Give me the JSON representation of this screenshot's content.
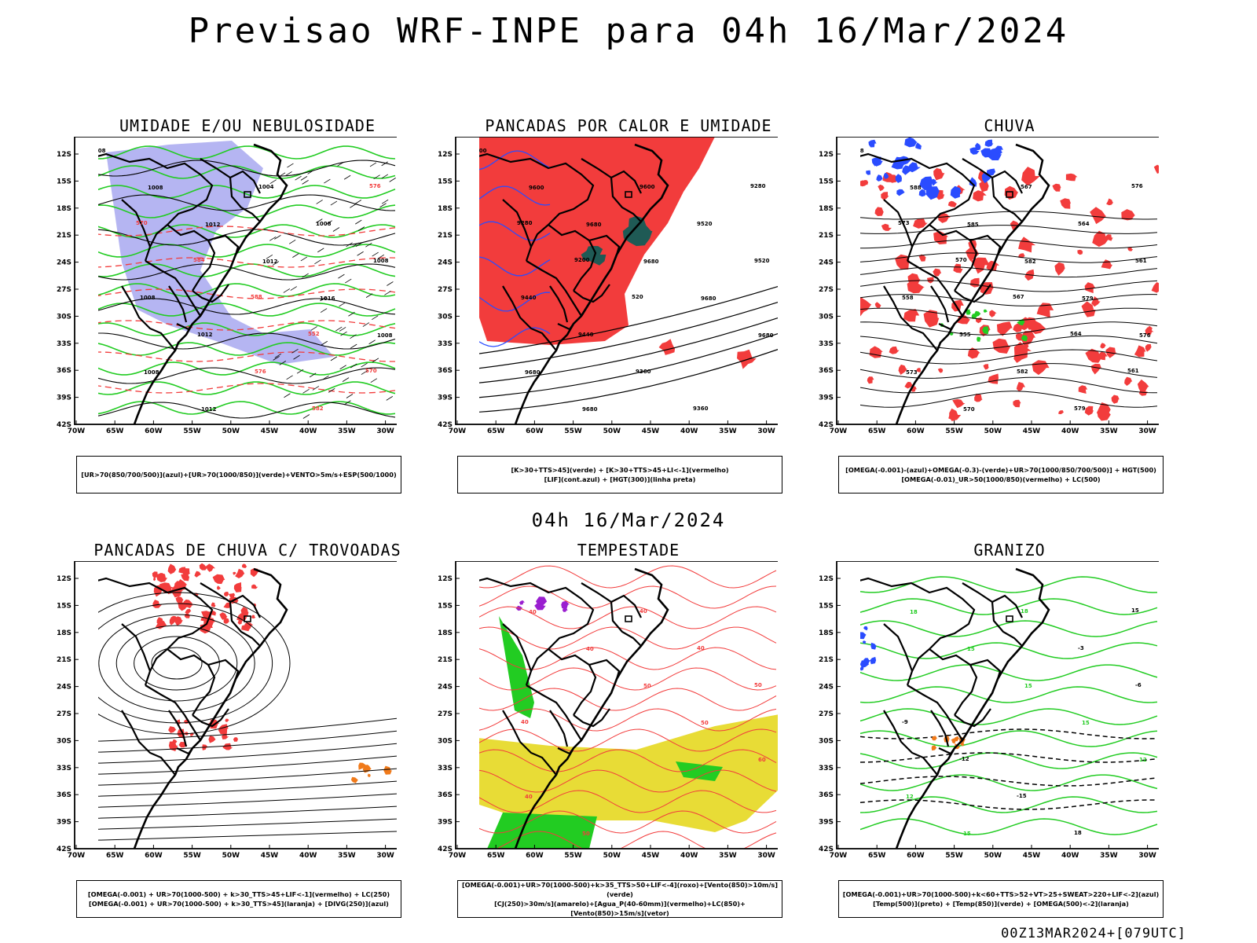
{
  "header": {
    "title": "Previsao WRF-INPE  para 04h 16/Mar/2024"
  },
  "middle": {
    "title": "04h 16/Mar/2024"
  },
  "footer": {
    "stamp": "00Z13MAR2024+[079UTC]"
  },
  "axes": {
    "lat_labels": [
      "12S",
      "15S",
      "18S",
      "21S",
      "24S",
      "27S",
      "30S",
      "33S",
      "36S",
      "39S",
      "42S"
    ],
    "lon_labels": [
      "70W",
      "65W",
      "60W",
      "55W",
      "50W",
      "45W",
      "40W",
      "35W",
      "30W"
    ]
  },
  "colors": {
    "red": "#f23c3c",
    "green": "#22cc22",
    "blue": "#2a4cff",
    "lavender": "#a8a8f0",
    "teal": "#1f5a55",
    "yellow": "#e8dc36",
    "purple": "#9a1fd0",
    "orange": "#f07a1a",
    "black": "#000000"
  },
  "panels": [
    {
      "title": "UMIDADE E/OU NEBULOSIDADE",
      "legend": [
        "[UR>70(850/700/500)](azul)+[UR>70(1000/850)](verde)+VENTO>5m/s+ESP(500/1000)"
      ],
      "contour_labels": [
        "1008",
        "1008",
        "1012",
        "1012",
        "1016",
        "1008",
        "1008",
        "1012",
        "1004",
        "1008",
        "1008",
        "1008",
        "1012",
        "576",
        "582",
        "576",
        "570",
        "584",
        "588",
        "552",
        "570"
      ]
    },
    {
      "title": "PANCADAS POR CALOR E UMIDADE",
      "legend": [
        "[K>30+TTS>45](verde) + [K>30+TTS>45+LI<-1](vermelho)",
        "[LIF](cont.azul) + [HGT(300)](linha preta)"
      ],
      "contour_labels": [
        "9600",
        "9600",
        "9680",
        "9680",
        "9680",
        "9680",
        "9680",
        "9680",
        "9600",
        "9520",
        "9520",
        "9440",
        "9440",
        "9360",
        "9360",
        "9280",
        "9280",
        "9200",
        "520"
      ]
    },
    {
      "title": "CHUVA",
      "legend": [
        "[OMEGA(-0.001)-(azul)+OMEGA(-0.3)-(verde)+UR>70(1000/850/700/500)] + HGT(500)",
        "[OMEGA(-0.01)_UR>50(1000/850)(vermelho) + LC(500)"
      ],
      "contour_labels": [
        "588",
        "588",
        "585",
        "582",
        "579",
        "576",
        "573",
        "570",
        "567",
        "564",
        "561",
        "558",
        "555",
        "582",
        "579",
        "576",
        "573",
        "570",
        "567",
        "564",
        "561"
      ]
    },
    {
      "title": "PANCADAS DE CHUVA C/ TROVOADAS",
      "legend": [
        "[OMEGA(-0.001) + UR>70(1000-500) + k>30_TTS>45+LIF<-1](vermelho) + LC(250)",
        "[OMEGA(-0.001) + UR>70(1000-500) + k>30_TTS>45](laranja) + [DIVG(250)](azul)"
      ],
      "contour_labels": []
    },
    {
      "title": "TEMPESTADE",
      "legend": [
        "[OMEGA(-0.001)+UR>70(1000-500)+k>35_TTS>50+LIF<-4](roxo)+[Vento(850)>10m/s](verde)",
        "[CJ(250)>30m/s](amarelo)+[Agua_P(40-60mm)](vermelho)+LC(850)+[Vento(850)>15m/s](vetor)"
      ],
      "contour_labels": [
        "40",
        "40",
        "40",
        "50",
        "50",
        "60",
        "40",
        "50",
        "40",
        "40",
        "50",
        "40"
      ]
    },
    {
      "title": "GRANIZO",
      "legend": [
        "[OMEGA(-0.001)+UR>70(1000-500)+k<60+TTS>52+VT>25+SWEAT>220+LIF<-2](azul)",
        "[Temp(500)](preto) + [Temp(850)](verde) + [OMEGA(500)<-2](laranja)"
      ],
      "contour_labels": [
        "18",
        "18",
        "15",
        "15",
        "15",
        "12",
        "12",
        "15",
        "18",
        "-3",
        "-6",
        "-9",
        "-12",
        "-15",
        "18",
        "15"
      ]
    }
  ]
}
